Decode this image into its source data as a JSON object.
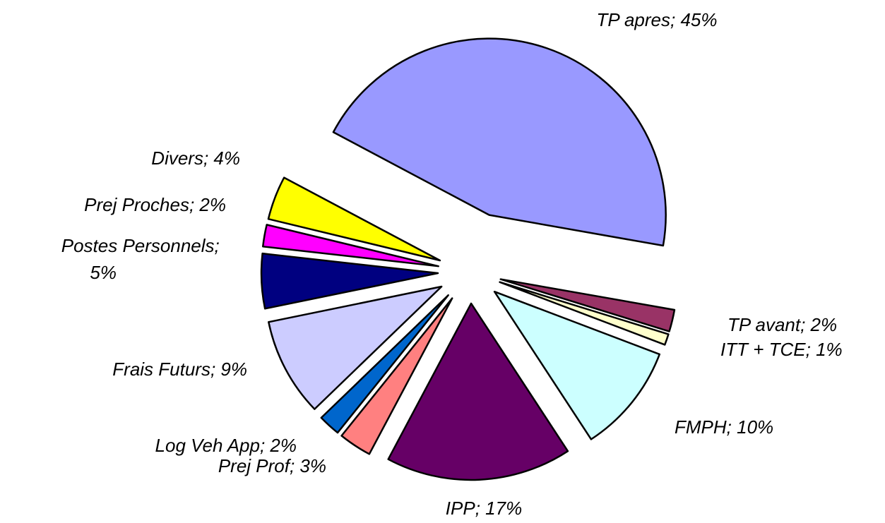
{
  "chart_data": {
    "type": "pie",
    "categories": [
      "TP apres",
      "TP avant",
      "ITT + TCE",
      "FMPH",
      "IPP",
      "Prej Prof",
      "Log Veh App",
      "Frais Futurs",
      "Postes Personnels",
      "Prej Proches",
      "Divers"
    ],
    "values": [
      45,
      2,
      1,
      10,
      17,
      3,
      2,
      9,
      5,
      2,
      4
    ],
    "value_labels": [
      "45%",
      "2%",
      "1%",
      "10%",
      "17%",
      "3%",
      "2%",
      "9%",
      "5%",
      "2%",
      "4%"
    ],
    "label_separator": "; ",
    "colors": [
      "#9999ff",
      "#993366",
      "#ffffcc",
      "#ccffff",
      "#660066",
      "#ff8080",
      "#0066cc",
      "#ccccff",
      "#000080",
      "#ff00ff",
      "#ffff00"
    ]
  }
}
